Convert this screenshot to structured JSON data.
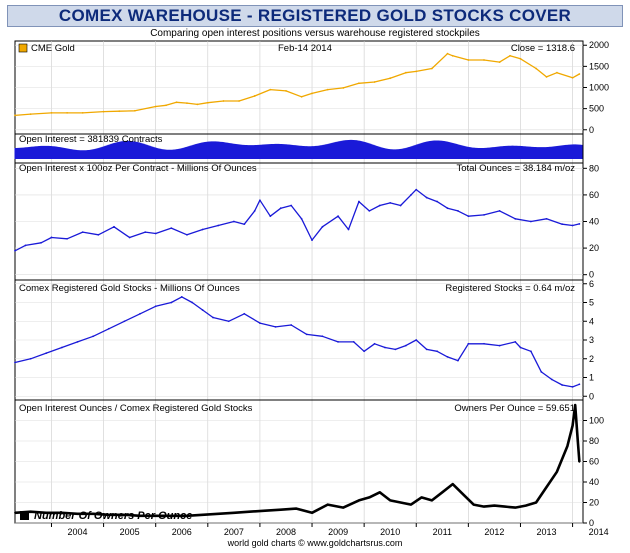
{
  "header": {
    "title": "COMEX WAREHOUSE - REGISTERED GOLD STOCKS COVER",
    "subtitle": "Comparing open interest positions versus warehouse registered stockpiles",
    "footer": "world gold charts © www.goldchartsrus.com"
  },
  "colors": {
    "gold": "#f0a800",
    "blue": "#1a1ad8",
    "black": "#000000",
    "title_bg": "#cfd9ea",
    "title_text": "#0d2a7a"
  },
  "chart_data": [
    {
      "type": "line",
      "legend": "CME Gold",
      "date_label": "Feb-14 2014",
      "value_label": "Close = 1318.6",
      "ylim": [
        -100,
        2100
      ],
      "yticks": [
        "0",
        "500",
        "1000",
        "1500",
        "2000"
      ],
      "x": [
        2003.3,
        2003.6,
        2004.0,
        2004.3,
        2004.6,
        2005.0,
        2005.3,
        2005.6,
        2006.0,
        2006.2,
        2006.4,
        2006.6,
        2006.8,
        2007.0,
        2007.3,
        2007.6,
        2007.9,
        2008.2,
        2008.5,
        2008.8,
        2009.0,
        2009.3,
        2009.6,
        2009.9,
        2010.2,
        2010.5,
        2010.8,
        2011.0,
        2011.3,
        2011.6,
        2011.7,
        2012.0,
        2012.3,
        2012.6,
        2012.8,
        2013.0,
        2013.3,
        2013.5,
        2013.7,
        2014.0,
        2014.13
      ],
      "values": [
        340,
        370,
        400,
        400,
        400,
        430,
        440,
        450,
        550,
        580,
        650,
        630,
        600,
        640,
        680,
        680,
        800,
        950,
        920,
        780,
        860,
        950,
        990,
        1100,
        1130,
        1220,
        1350,
        1380,
        1450,
        1800,
        1750,
        1650,
        1650,
        1600,
        1750,
        1680,
        1450,
        1250,
        1350,
        1230,
        1318.6
      ]
    },
    {
      "type": "area",
      "value_label": "Open Interest = 381839 Contracts",
      "note": "open interest histogram (contracts)"
    },
    {
      "type": "line",
      "legend": "Open Interest x 100oz Per Contract - Millions Of Ounces",
      "value_label": "Total Ounces = 38.184 m/oz",
      "ylim": [
        -4,
        84
      ],
      "yticks": [
        "0",
        "20",
        "40",
        "60",
        "80"
      ],
      "x": [
        2003.3,
        2003.5,
        2003.8,
        2004.0,
        2004.3,
        2004.6,
        2004.9,
        2005.2,
        2005.5,
        2005.8,
        2006.0,
        2006.3,
        2006.6,
        2006.9,
        2007.2,
        2007.5,
        2007.7,
        2007.9,
        2008.0,
        2008.2,
        2008.4,
        2008.6,
        2008.8,
        2009.0,
        2009.2,
        2009.5,
        2009.7,
        2009.9,
        2010.1,
        2010.3,
        2010.5,
        2010.7,
        2010.9,
        2011.0,
        2011.2,
        2011.4,
        2011.6,
        2011.8,
        2012.0,
        2012.3,
        2012.6,
        2012.9,
        2013.2,
        2013.5,
        2013.8,
        2014.0,
        2014.13
      ],
      "values": [
        18,
        22,
        24,
        28,
        27,
        32,
        30,
        36,
        28,
        32,
        31,
        35,
        30,
        34,
        37,
        40,
        38,
        48,
        56,
        44,
        50,
        52,
        42,
        26,
        36,
        44,
        34,
        55,
        48,
        52,
        54,
        52,
        60,
        64,
        58,
        55,
        50,
        48,
        44,
        45,
        48,
        42,
        40,
        42,
        38,
        37,
        38.184
      ]
    },
    {
      "type": "line",
      "legend": "Comex Registered Gold Stocks - Millions Of Ounces",
      "value_label": "Registered Stocks = 0.64 m/oz",
      "ylim": [
        -0.2,
        6.2
      ],
      "yticks": [
        "0",
        "1",
        "2",
        "3",
        "4",
        "5",
        "6"
      ],
      "x": [
        2003.3,
        2003.6,
        2003.9,
        2004.2,
        2004.5,
        2004.8,
        2005.1,
        2005.4,
        2005.7,
        2006.0,
        2006.3,
        2006.5,
        2006.7,
        2006.9,
        2007.1,
        2007.4,
        2007.7,
        2008.0,
        2008.3,
        2008.6,
        2008.9,
        2009.2,
        2009.5,
        2009.8,
        2010.0,
        2010.2,
        2010.4,
        2010.6,
        2010.8,
        2011.0,
        2011.2,
        2011.4,
        2011.6,
        2011.8,
        2012.0,
        2012.3,
        2012.6,
        2012.9,
        2013.0,
        2013.2,
        2013.4,
        2013.6,
        2013.8,
        2014.0,
        2014.13
      ],
      "values": [
        1.8,
        2.0,
        2.3,
        2.6,
        2.9,
        3.2,
        3.6,
        4.0,
        4.4,
        4.8,
        5.0,
        5.3,
        5.0,
        4.6,
        4.2,
        4.0,
        4.4,
        3.9,
        3.7,
        3.8,
        3.3,
        3.2,
        2.9,
        2.9,
        2.4,
        2.8,
        2.6,
        2.5,
        2.7,
        3.0,
        2.5,
        2.4,
        2.1,
        1.9,
        2.8,
        2.8,
        2.7,
        2.9,
        2.6,
        2.4,
        1.3,
        0.9,
        0.6,
        0.5,
        0.64
      ]
    },
    {
      "type": "line",
      "title": "Open Interest Ounces / Comex Registered Gold Stocks",
      "value_label": "Owners Per Ounce = 59.651",
      "legend": "Number Of Owners Per Ounce",
      "ylim": [
        0,
        120
      ],
      "yticks": [
        "0",
        "20",
        "40",
        "60",
        "80",
        "100"
      ],
      "x": [
        2003.3,
        2003.6,
        2003.9,
        2004.2,
        2004.5,
        2004.8,
        2005.1,
        2005.4,
        2005.7,
        2006.0,
        2006.3,
        2006.6,
        2006.9,
        2007.2,
        2007.5,
        2007.8,
        2008.1,
        2008.4,
        2008.7,
        2009.0,
        2009.3,
        2009.6,
        2009.9,
        2010.1,
        2010.3,
        2010.5,
        2010.7,
        2010.9,
        2011.1,
        2011.3,
        2011.5,
        2011.7,
        2011.9,
        2012.1,
        2012.3,
        2012.5,
        2012.7,
        2012.9,
        2013.1,
        2013.3,
        2013.5,
        2013.7,
        2013.9,
        2014.0,
        2014.05,
        2014.1,
        2014.13
      ],
      "values": [
        10,
        11,
        10,
        10,
        9,
        9,
        8,
        8,
        7,
        7,
        7,
        7,
        8,
        9,
        10,
        11,
        12,
        13,
        14,
        10,
        18,
        15,
        22,
        25,
        30,
        22,
        20,
        18,
        25,
        22,
        30,
        38,
        28,
        18,
        16,
        17,
        16,
        15,
        17,
        20,
        35,
        50,
        75,
        95,
        115,
        80,
        59.651
      ]
    }
  ],
  "x_axis": {
    "ticks": [
      "2004",
      "2005",
      "2006",
      "2007",
      "2008",
      "2009",
      "2010",
      "2011",
      "2012",
      "2013",
      "2014"
    ]
  }
}
